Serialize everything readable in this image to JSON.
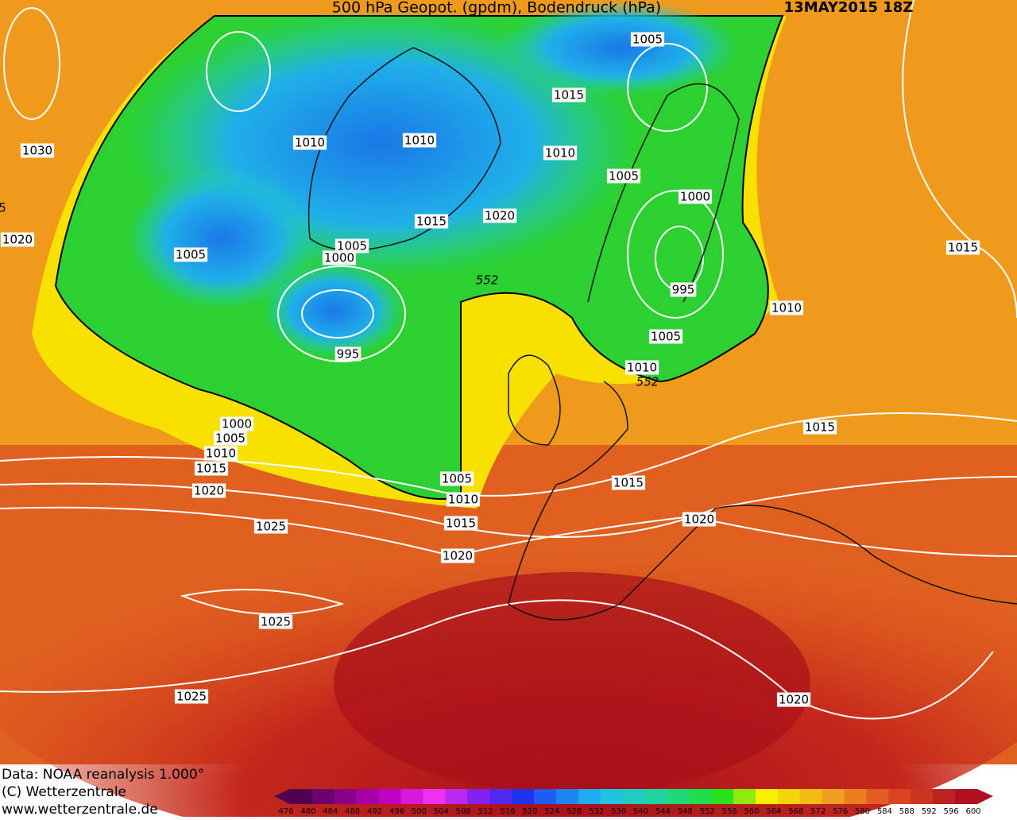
{
  "header": {
    "title": "500 hPa Geopot. (gpdm), Bodendruck (hPa)",
    "date": "13MAY2015 18Z"
  },
  "isobar_labels": [
    "1005",
    "1015",
    "1010",
    "1010",
    "1010",
    "1030",
    "1005",
    "1000",
    "1015",
    "1020",
    "1020",
    "1005",
    "1005",
    "1000",
    "995",
    "1015",
    "1010",
    "1005",
    "995",
    "1010",
    "1000",
    "1005",
    "1010",
    "1015",
    "1020",
    "1015",
    "1005",
    "1010",
    "1015",
    "1015",
    "1020",
    "1025",
    "1020",
    "1025",
    "1025",
    "1020",
    "5"
  ],
  "geopot_labels": [
    "552",
    "552"
  ],
  "footer": {
    "line1": "Data: NOAA reanalysis 1.000°",
    "line2": "(C) Wetterzentrale",
    "line3": "www.wetterzentrale.de"
  },
  "colorbar": {
    "labels": [
      "476",
      "480",
      "484",
      "488",
      "492",
      "496",
      "500",
      "504",
      "508",
      "512",
      "516",
      "520",
      "524",
      "528",
      "532",
      "536",
      "540",
      "544",
      "548",
      "552",
      "556",
      "560",
      "564",
      "568",
      "572",
      "576",
      "580",
      "584",
      "588",
      "592",
      "596",
      "600"
    ]
  }
}
